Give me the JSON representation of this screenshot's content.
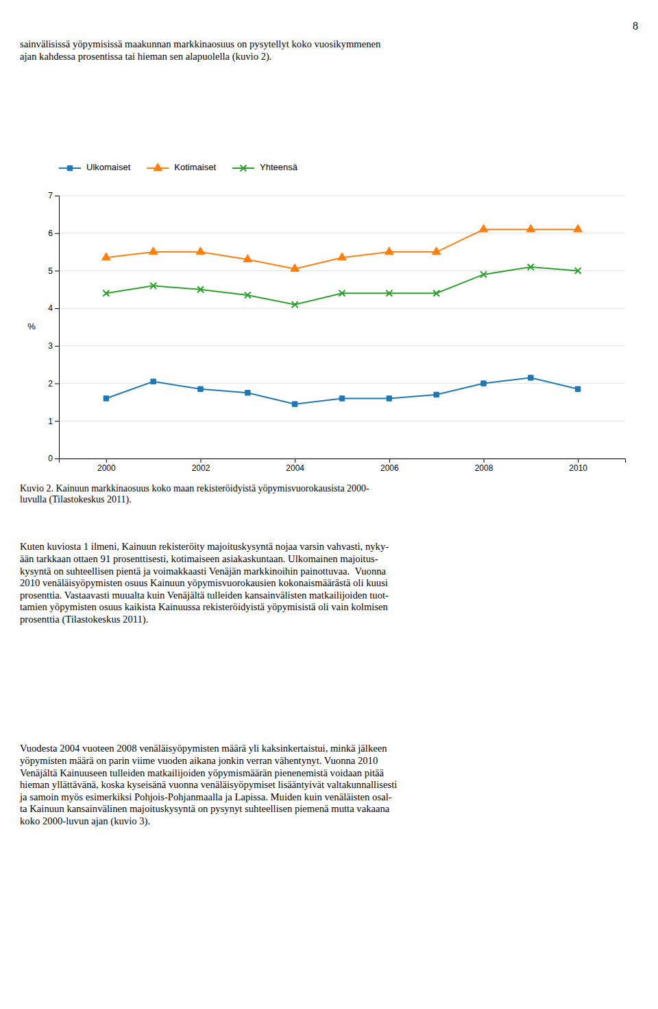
{
  "page_number": "8",
  "header": [
    "sainvälisissä yöpymisissä maakunnan markkinaosuus on pysytellyt koko vuosikymmenen",
    "ajan kahdessa prosentissa tai hieman sen alapuolella (kuvio 2)."
  ],
  "chart_data": {
    "type": "line",
    "y_label": "%",
    "x": [
      2000,
      2001,
      2002,
      2003,
      2004,
      2005,
      2006,
      2007,
      2008,
      2009,
      2010
    ],
    "series": [
      {
        "name": "Ulkomaiset",
        "marker": "square",
        "values": [
          1.6,
          2.05,
          1.85,
          1.75,
          1.45,
          1.6,
          1.6,
          1.7,
          2.0,
          2.15,
          1.85
        ]
      },
      {
        "name": "Kotimaiset",
        "marker": "triangle",
        "values": [
          5.35,
          5.5,
          5.5,
          5.3,
          5.05,
          5.35,
          5.5,
          5.5,
          6.1,
          6.1,
          6.1
        ]
      },
      {
        "name": "Yhteensä",
        "marker": "x",
        "values": [
          4.4,
          4.6,
          4.5,
          4.35,
          4.1,
          4.4,
          4.4,
          4.4,
          4.9,
          5.1,
          5.0
        ]
      }
    ],
    "xlim": [
      1999,
      2011
    ],
    "xticks": [
      2000,
      2002,
      2004,
      2006,
      2008,
      2010
    ],
    "ylim": [
      0,
      7
    ],
    "yticks": [
      0,
      1,
      2,
      3,
      4,
      5,
      6,
      7
    ],
    "grid": true,
    "legend": "top"
  },
  "caption": [
    "Kuvio 2. Kainuun markkinaosuus koko maan rekisteröidyistä yöpymisvuorokausista 2000-",
    "luvulla (Tilastokeskus 2011)."
  ],
  "paragraphs": [
    [
      "Kuten kuviosta 1 ilmeni, Kainuun rekisteröity majoituskysyntä nojaa varsin vahvasti, nyky-",
      "ään tarkkaan ottaen 91 prosenttisesti, kotimaiseen asiakaskuntaan. Ulkomainen majoitus-",
      "kysyntä on suhteellisen pientä ja voimakkaasti Venäjän markkinoihin painottuvaa. Vuonna",
      "2010 venäläisyöpymisten osuus Kainuun yöpymisvuorokausien kokonaismäärästä oli kuusi",
      "prosenttia. Vastaavasti muualta kuin Venäjältä tulleiden kansainvälisten matkailijoiden tuot-",
      "tamien yöpymisten osuus kaikista Kainuussa rekisteröidyistä yöpymisistä oli vain kolmisen",
      "prosenttia (Tilastokeskus 2011)."
    ],
    [
      "Vuodesta 2004 vuoteen 2008 venäläisyöpymisten määrä yli kaksinkertaistui, minkä jälkeen",
      "yöpymisten määrä on parin viime vuoden aikana jonkin verran vähentynyt. Vuonna 2010",
      "Venäjältä Kainuuseen tulleiden matkailijoiden yöpymismäärän pienenemistä voidaan pitää",
      "hieman yllättävänä, koska kyseisänä vuonna venäläisyöpymiset lisääntyivät valtakunnallisesti",
      "ja samoin myös esimerkiksi Pohjois-Pohjanmaalla ja Lapissa. Muiden kuin venäläisten osal-",
      "ta Kainuun kansainvälinen majoituskysyntä on pysynyt suhteellisen piemenä mutta vakaana",
      "koko 2000-luvun ajan (kuvio 3)."
    ]
  ]
}
